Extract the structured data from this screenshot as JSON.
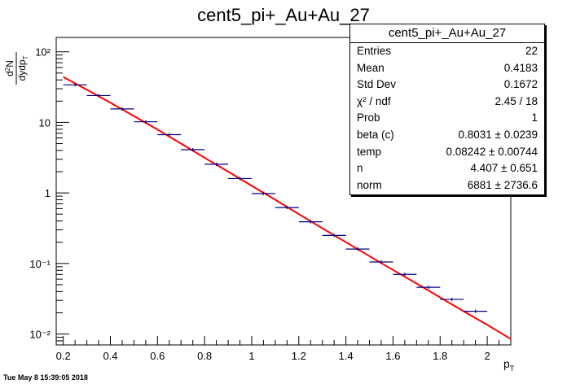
{
  "stamp": "Tue May  8 15:39:05 2018",
  "stats": {
    "title": "cent5_pi+_Au+Au_27",
    "rows": [
      {
        "label": "Entries",
        "value": "22"
      },
      {
        "label": "Mean",
        "value": "0.4183"
      },
      {
        "label": "Std Dev",
        "value": "0.1672"
      },
      {
        "label": "χ² / ndf",
        "value": "2.45 / 18"
      },
      {
        "label": "Prob",
        "value": "1"
      },
      {
        "label": "beta (c)",
        "value": "0.8031 ± 0.0239"
      },
      {
        "label": "temp",
        "value": "0.08242 ± 0.00744"
      },
      {
        "label": "n",
        "value": "4.407 ± 0.651"
      },
      {
        "label": "norm",
        "value": "6881 ± 2736.6"
      }
    ]
  },
  "chart_data": {
    "type": "scatter",
    "title": "cent5_pi+_Au+Au_27",
    "xlabel": "p_T",
    "ylabel": "d²N / dydp_T",
    "xlim": [
      0.17,
      2.1
    ],
    "ylim": [
      0.007,
      160
    ],
    "ylog": true,
    "x_ticks": [
      "0.2",
      "0.4",
      "0.6",
      "0.8",
      "1",
      "1.2",
      "1.4",
      "1.6",
      "1.8",
      "2"
    ],
    "y_ticks": [
      "10⁻²",
      "10⁻¹",
      "1",
      "10",
      "10²"
    ],
    "series": [
      {
        "kind": "points-with-xerr",
        "color": "#00007f",
        "x": [
          0.25,
          0.35,
          0.45,
          0.55,
          0.65,
          0.75,
          0.85,
          0.95,
          1.05,
          1.15,
          1.25,
          1.35,
          1.45,
          1.55,
          1.65,
          1.75,
          1.85,
          1.95
        ],
        "xerr": [
          0.05,
          0.05,
          0.05,
          0.05,
          0.05,
          0.05,
          0.05,
          0.05,
          0.05,
          0.05,
          0.05,
          0.05,
          0.05,
          0.05,
          0.05,
          0.05,
          0.05,
          0.05
        ],
        "y": [
          34,
          24,
          15.5,
          10.2,
          6.7,
          4.1,
          2.55,
          1.6,
          0.98,
          0.62,
          0.39,
          0.25,
          0.16,
          0.105,
          0.07,
          0.046,
          0.031,
          0.021
        ]
      },
      {
        "kind": "fit-curve",
        "color": "#ff0000",
        "x": [
          0.2,
          0.3,
          0.4,
          0.5,
          0.6,
          0.7,
          0.8,
          0.9,
          1.0,
          1.1,
          1.2,
          1.3,
          1.4,
          1.5,
          1.6,
          1.7,
          1.8,
          1.9,
          2.0,
          2.1
        ],
        "y": [
          44,
          29,
          19,
          12.3,
          7.9,
          5.0,
          3.15,
          2.0,
          1.26,
          0.8,
          0.5,
          0.315,
          0.2,
          0.127,
          0.081,
          0.052,
          0.033,
          0.021,
          0.0135,
          0.0085
        ]
      }
    ]
  }
}
